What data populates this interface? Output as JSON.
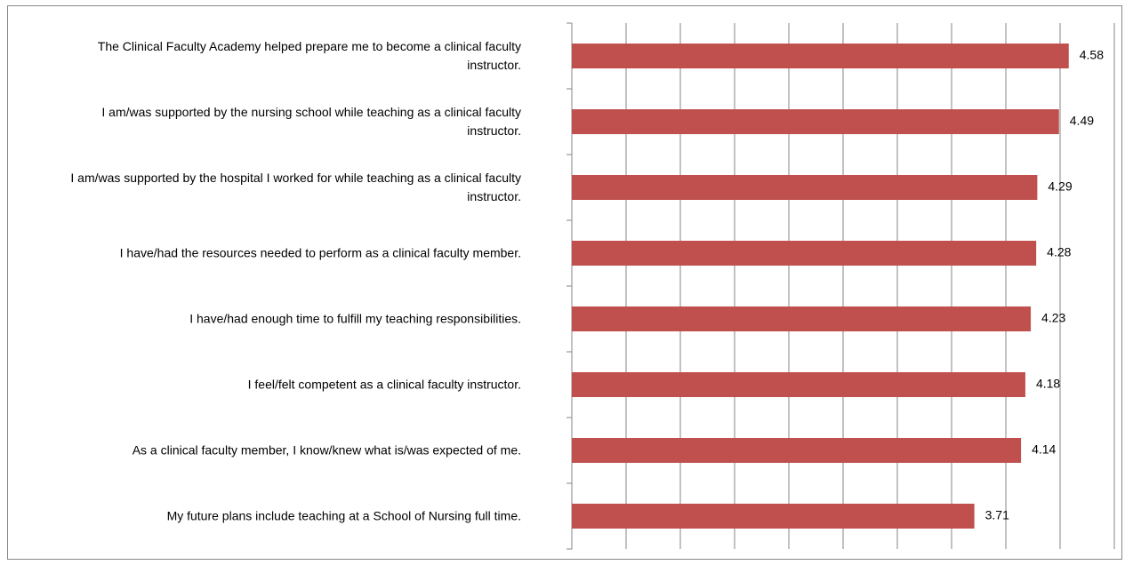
{
  "chart_data": {
    "type": "bar",
    "orientation": "horizontal",
    "categories": [
      "The Clinical Faculty Academy helped prepare me to become a clinical faculty instructor.",
      "I am/was supported by the nursing school while teaching as a clinical faculty instructor.",
      "I am/was supported by the hospital I worked for while teaching as a clinical faculty instructor.",
      "I have/had the resources needed to perform as a clinical faculty member.",
      "I have/had enough time to fulfill my teaching responsibilities.",
      "I feel/felt competent as a clinical faculty instructor.",
      "As a clinical faculty member, I know/knew what is/was expected of me.",
      "My future plans include teaching at a School of Nursing full time."
    ],
    "values": [
      4.58,
      4.49,
      4.29,
      4.28,
      4.23,
      4.18,
      4.14,
      3.71
    ],
    "color": "#c0504d",
    "xlim": [
      0,
      5
    ],
    "xticks": [
      0,
      0.5,
      1,
      1.5,
      2,
      2.5,
      3,
      3.5,
      4,
      4.5,
      5
    ],
    "grid": true
  }
}
